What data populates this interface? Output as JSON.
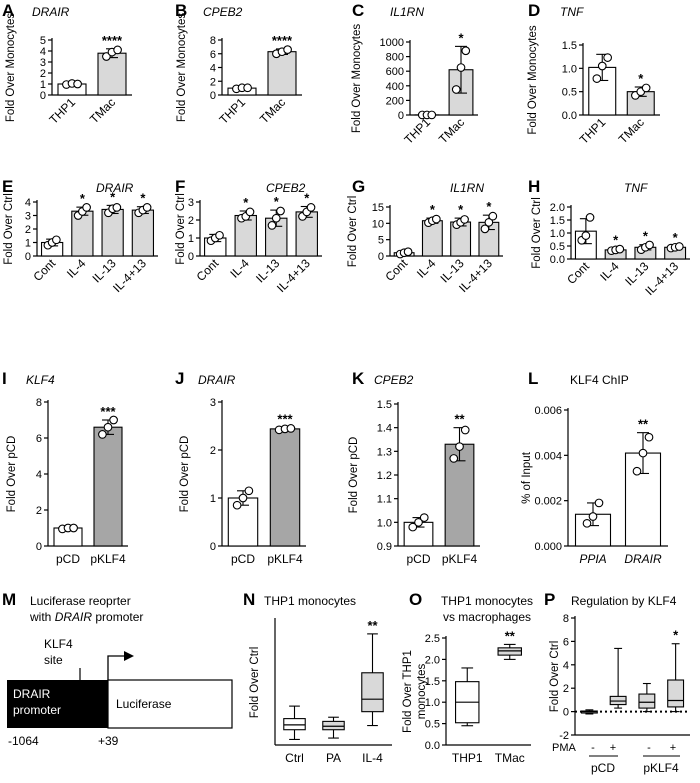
{
  "panels": {
    "A": {
      "letter": "A",
      "title": "DRAIR"
    },
    "B": {
      "letter": "B",
      "title": "CPEB2"
    },
    "C": {
      "letter": "C",
      "title": "IL1RN"
    },
    "D": {
      "letter": "D",
      "title": "TNF"
    },
    "E": {
      "letter": "E",
      "title": "DRAIR"
    },
    "F": {
      "letter": "F",
      "title": "CPEB2"
    },
    "G": {
      "letter": "G",
      "title": "IL1RN"
    },
    "H": {
      "letter": "H",
      "title": "TNF"
    },
    "I": {
      "letter": "I",
      "title": "KLF4"
    },
    "J": {
      "letter": "J",
      "title": "DRAIR"
    },
    "K": {
      "letter": "K",
      "title": "CPEB2"
    },
    "L": {
      "letter": "L",
      "title": "KLF4 ChIP"
    },
    "M": {
      "letter": "M",
      "title_line1": "Luciferase reoprter",
      "title_line2_prefix": "with ",
      "title_line2_gene": "DRAIR",
      "title_line2_suffix": " promoter",
      "site_label_1": "KLF4",
      "site_label_2": "site",
      "promoter_label_1": "DRAIR",
      "promoter_label_2": "promoter",
      "reporter_label": "Luciferase",
      "start_coord": "-1064",
      "end_coord": "+39"
    },
    "N": {
      "letter": "N",
      "title": "THP1 monocytes"
    },
    "O": {
      "letter": "O",
      "title_line1": "THP1 monocytes",
      "title_line2": "vs macrophages"
    },
    "P": {
      "letter": "P",
      "title": "Regulation by KLF4",
      "pma_label": "PMA",
      "pma_signs": [
        "-",
        "+",
        "-",
        "+"
      ],
      "group_labels": [
        "pCD",
        "pKLF4"
      ]
    }
  },
  "chart_data": [
    {
      "id": "A",
      "type": "bar",
      "title": "DRAIR",
      "ylabel": "Fold Over Monocytes",
      "categories": [
        "THP1",
        "TMac"
      ],
      "values": [
        1.0,
        3.8
      ],
      "error": [
        0.1,
        0.4
      ],
      "points": [
        [
          0.95,
          1.05,
          1.0
        ],
        [
          3.5,
          3.9,
          4.1
        ]
      ],
      "bar_colors": [
        "#ffffff",
        "#d9d9d9"
      ],
      "ylim": [
        0,
        5
      ],
      "yticks": [
        0,
        1,
        2,
        3,
        4,
        5
      ],
      "significance": [
        "",
        "****"
      ]
    },
    {
      "id": "B",
      "type": "bar",
      "title": "CPEB2",
      "ylabel": "Fold Over Monocytes",
      "categories": [
        "THP1",
        "TMac"
      ],
      "values": [
        1.0,
        6.3
      ],
      "error": [
        0.1,
        0.4
      ],
      "points": [
        [
          0.9,
          1.05,
          1.05
        ],
        [
          6.0,
          6.3,
          6.6
        ]
      ],
      "bar_colors": [
        "#ffffff",
        "#d9d9d9"
      ],
      "ylim": [
        0,
        8
      ],
      "yticks": [
        0,
        2,
        4,
        6,
        8
      ],
      "significance": [
        "",
        "****"
      ]
    },
    {
      "id": "C",
      "type": "bar",
      "title": "IL1RN",
      "ylabel": "Fold Over Monocytes",
      "categories": [
        "THP1",
        "TMac"
      ],
      "values": [
        1,
        620
      ],
      "error": [
        3,
        320
      ],
      "points": [
        [
          1,
          1,
          1
        ],
        [
          350,
          650,
          880
        ]
      ],
      "bar_colors": [
        "#ffffff",
        "#d9d9d9"
      ],
      "ylim": [
        0,
        1000
      ],
      "yticks": [
        0,
        200,
        400,
        600,
        800,
        1000
      ],
      "significance": [
        "",
        "*"
      ]
    },
    {
      "id": "D",
      "type": "bar",
      "title": "TNF",
      "ylabel": "Fold Over Monocytes",
      "categories": [
        "THP1",
        "TMac"
      ],
      "values": [
        1.02,
        0.5
      ],
      "error": [
        0.28,
        0.1
      ],
      "points": [
        [
          0.78,
          1.05,
          1.23
        ],
        [
          0.42,
          0.5,
          0.58
        ]
      ],
      "bar_colors": [
        "#ffffff",
        "#d9d9d9"
      ],
      "ylim": [
        0,
        1.5
      ],
      "yticks": [
        0.0,
        0.5,
        1.0,
        1.5
      ],
      "significance": [
        "",
        "*"
      ]
    },
    {
      "id": "E",
      "type": "bar",
      "title": "DRAIR",
      "ylabel": "Fold Over Ctrl",
      "categories": [
        "Cont",
        "IL-4",
        "IL-13",
        "IL-4+13"
      ],
      "values": [
        1.0,
        3.32,
        3.45,
        3.4
      ],
      "error": [
        0.25,
        0.3,
        0.3,
        0.25
      ],
      "points": [
        [
          0.8,
          1.0,
          1.2
        ],
        [
          3.0,
          3.3,
          3.6
        ],
        [
          3.2,
          3.5,
          3.6
        ],
        [
          3.2,
          3.4,
          3.6
        ]
      ],
      "bar_colors": [
        "#ffffff",
        "#d9d9d9",
        "#d9d9d9",
        "#d9d9d9"
      ],
      "ylim": [
        0,
        4
      ],
      "yticks": [
        0,
        1,
        2,
        3,
        4
      ],
      "significance": [
        "",
        "*",
        "*",
        "*"
      ]
    },
    {
      "id": "F",
      "type": "bar",
      "title": "CPEB2",
      "ylabel": "Fold Over Ctrl",
      "categories": [
        "Cont",
        "IL-4",
        "IL-13",
        "IL-4+13"
      ],
      "values": [
        1.0,
        2.25,
        2.1,
        2.45
      ],
      "error": [
        0.2,
        0.25,
        0.45,
        0.3
      ],
      "points": [
        [
          0.85,
          1.0,
          1.15
        ],
        [
          2.1,
          2.2,
          2.45
        ],
        [
          1.7,
          2.1,
          2.5
        ],
        [
          2.2,
          2.45,
          2.7
        ]
      ],
      "bar_colors": [
        "#ffffff",
        "#d9d9d9",
        "#d9d9d9",
        "#d9d9d9"
      ],
      "ylim": [
        0,
        3
      ],
      "yticks": [
        0,
        1,
        2,
        3
      ],
      "significance": [
        "",
        "*",
        "*",
        "*"
      ]
    },
    {
      "id": "G",
      "type": "bar",
      "title": "IL1RN",
      "ylabel": "Fold Over Ctrl",
      "categories": [
        "Cont",
        "IL-4",
        "IL-13",
        "IL-4+13"
      ],
      "values": [
        1.0,
        10.8,
        10.4,
        10.3
      ],
      "error": [
        0.4,
        0.8,
        1.2,
        2.2
      ],
      "points": [
        [
          0.6,
          1.0,
          1.3
        ],
        [
          10.2,
          10.8,
          11.3
        ],
        [
          9.6,
          10.3,
          11.2
        ],
        [
          8.3,
          10.3,
          12.2
        ]
      ],
      "bar_colors": [
        "#ffffff",
        "#d9d9d9",
        "#d9d9d9",
        "#d9d9d9"
      ],
      "ylim": [
        0,
        15
      ],
      "yticks": [
        0,
        5,
        10,
        15
      ],
      "significance": [
        "",
        "*",
        "*",
        "*"
      ]
    },
    {
      "id": "H",
      "type": "bar",
      "title": "TNF",
      "ylabel": "Fold Over Ctrl",
      "categories": [
        "Cont",
        "IL-4",
        "IL-13",
        "IL-4+13"
      ],
      "values": [
        1.07,
        0.35,
        0.45,
        0.45
      ],
      "error": [
        0.48,
        0.05,
        0.1,
        0.05
      ],
      "points": [
        [
          0.72,
          0.9,
          1.6
        ],
        [
          0.32,
          0.35,
          0.38
        ],
        [
          0.36,
          0.45,
          0.54
        ],
        [
          0.42,
          0.45,
          0.48
        ]
      ],
      "bar_colors": [
        "#ffffff",
        "#d9d9d9",
        "#d9d9d9",
        "#d9d9d9"
      ],
      "ylim": [
        0,
        2.0
      ],
      "yticks": [
        0.0,
        0.5,
        1.0,
        1.5,
        2.0
      ],
      "significance": [
        "",
        "*",
        "*",
        "*"
      ]
    },
    {
      "id": "I",
      "type": "bar",
      "title": "KLF4",
      "ylabel": "Fold Over pCD",
      "categories": [
        "pCD",
        "pKLF4"
      ],
      "values": [
        1.0,
        6.6
      ],
      "error": [
        0.05,
        0.4
      ],
      "points": [
        [
          0.95,
          1.0,
          1.0
        ],
        [
          6.2,
          6.6,
          7.0
        ]
      ],
      "bar_colors": [
        "#ffffff",
        "#a6a6a6"
      ],
      "ylim": [
        0,
        8
      ],
      "yticks": [
        0,
        2,
        4,
        6,
        8
      ],
      "significance": [
        "",
        "***"
      ]
    },
    {
      "id": "J",
      "type": "bar",
      "title": "DRAIR",
      "ylabel": "Fold Over pCD",
      "categories": [
        "pCD",
        "pKLF4"
      ],
      "values": [
        1.0,
        2.44
      ],
      "error": [
        0.15,
        0.03
      ],
      "points": [
        [
          0.85,
          1.0,
          1.15
        ],
        [
          2.42,
          2.44,
          2.45
        ]
      ],
      "bar_colors": [
        "#ffffff",
        "#a6a6a6"
      ],
      "ylim": [
        0,
        3
      ],
      "yticks": [
        0,
        1,
        2,
        3
      ],
      "significance": [
        "",
        "***"
      ]
    },
    {
      "id": "K",
      "type": "bar",
      "title": "CPEB2",
      "ylabel": "Fold Over pCD",
      "categories": [
        "pCD",
        "pKLF4"
      ],
      "values": [
        1.0,
        1.33
      ],
      "error": [
        0.02,
        0.07
      ],
      "points": [
        [
          0.98,
          1.0,
          1.02
        ],
        [
          1.27,
          1.32,
          1.39
        ]
      ],
      "bar_colors": [
        "#ffffff",
        "#a6a6a6"
      ],
      "ylim": [
        0.9,
        1.5
      ],
      "yticks": [
        0.9,
        1.0,
        1.1,
        1.2,
        1.3,
        1.4,
        1.5
      ],
      "significance": [
        "",
        "**"
      ]
    },
    {
      "id": "L",
      "type": "bar",
      "title": "KLF4 ChIP",
      "ylabel": "% of Input",
      "categories": [
        "PPIA",
        "DRAIR"
      ],
      "values": [
        0.0014,
        0.0041
      ],
      "error": [
        0.0005,
        0.0009
      ],
      "points": [
        [
          0.001,
          0.0013,
          0.0019
        ],
        [
          0.0033,
          0.0041,
          0.0048
        ]
      ],
      "bar_colors": [
        "#ffffff",
        "#ffffff"
      ],
      "ylim": [
        0,
        0.006
      ],
      "yticks": [
        0.0,
        0.002,
        0.004,
        0.006
      ],
      "significance": [
        "",
        "**"
      ]
    },
    {
      "id": "N",
      "type": "box",
      "title": "THP1 monocytes",
      "ylabel": "Fold Over Ctrl",
      "categories": [
        "Ctrl",
        "PA",
        "IL-4"
      ],
      "boxes": [
        {
          "min": -0.6,
          "q1": 0.1,
          "median": 0.45,
          "q3": 0.9,
          "max": 1.8
        },
        {
          "min": -0.5,
          "q1": 0.1,
          "median": 0.35,
          "q3": 0.7,
          "max": 1.0
        },
        {
          "min": 0.4,
          "q1": 1.4,
          "median": 2.3,
          "q3": 4.2,
          "max": 7.0
        }
      ],
      "box_colors": [
        "#ffffff",
        "#d9d9d9",
        "#d9d9d9"
      ],
      "significance": [
        "",
        "",
        "**"
      ]
    },
    {
      "id": "O",
      "type": "box",
      "title": "THP1 monocytes vs macrophages",
      "ylabel": "Fold Over THP1 monocytes",
      "categories": [
        "THP1",
        "TMac"
      ],
      "ylim": [
        0.0,
        2.5
      ],
      "yticks": [
        0.0,
        0.5,
        1.0,
        1.5,
        2.0,
        2.5
      ],
      "boxes": [
        {
          "min": 0.45,
          "q1": 0.52,
          "median": 1.0,
          "q3": 1.48,
          "max": 1.8
        },
        {
          "min": 2.0,
          "q1": 2.1,
          "median": 2.2,
          "q3": 2.27,
          "max": 2.35
        }
      ],
      "box_colors": [
        "#ffffff",
        "#d9d9d9"
      ],
      "significance": [
        "",
        "**"
      ]
    },
    {
      "id": "P",
      "type": "box",
      "title": "Regulation by KLF4",
      "ylabel": "Fold Over Ctrl",
      "categories": [
        "pCD -",
        "pCD +",
        "pKLF4 -",
        "pKLF4 +"
      ],
      "ylim": [
        -2,
        8
      ],
      "yticks": [
        -2,
        0,
        2,
        4,
        6,
        8
      ],
      "reference_line": 0,
      "boxes": [
        {
          "min": -0.2,
          "q1": -0.05,
          "median": 0.0,
          "q3": 0.05,
          "max": 0.15
        },
        {
          "min": 0.3,
          "q1": 0.6,
          "median": 0.9,
          "q3": 1.3,
          "max": 5.4
        },
        {
          "min": 0.0,
          "q1": 0.3,
          "median": 0.8,
          "q3": 1.5,
          "max": 2.4
        },
        {
          "min": 0.0,
          "q1": 0.4,
          "median": 0.95,
          "q3": 2.7,
          "max": 5.8
        }
      ],
      "box_colors": [
        "#d9d9d9",
        "#d9d9d9",
        "#d9d9d9",
        "#d9d9d9"
      ],
      "significance": [
        "",
        "",
        "",
        "*"
      ]
    }
  ]
}
